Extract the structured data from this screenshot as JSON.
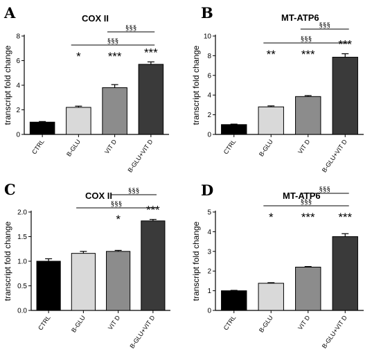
{
  "chart_data": [
    {
      "panel": "A",
      "type": "bar",
      "title": "COX II",
      "ylabel": "transcript fold change",
      "categories": [
        "CTRL",
        "B-GLU",
        "VIT D",
        "B-GLU+VIT D"
      ],
      "values": [
        1.0,
        2.2,
        3.8,
        5.7
      ],
      "errors": [
        0.05,
        0.1,
        0.25,
        0.2
      ],
      "ylim": [
        0,
        8
      ],
      "yticks": [
        "0",
        "2",
        "4",
        "6",
        "8"
      ],
      "colors": [
        "#000000",
        "#d9d9d9",
        "#8c8c8c",
        "#3a3a3a"
      ],
      "significance": [
        "",
        "*",
        "***",
        "***"
      ],
      "brackets": [
        {
          "from": 1,
          "to": 3,
          "label": "§§§"
        },
        {
          "from": 2,
          "to": 3,
          "label": "§§§"
        }
      ]
    },
    {
      "panel": "B",
      "type": "bar",
      "title": "MT-ATP6",
      "ylabel": "transcript fold change",
      "categories": [
        "CTRL",
        "B-GLU",
        "VIT D",
        "B-GLU+VIT D"
      ],
      "values": [
        1.0,
        2.8,
        3.85,
        7.85
      ],
      "errors": [
        0.05,
        0.1,
        0.1,
        0.35
      ],
      "ylim": [
        0,
        10
      ],
      "yticks": [
        "0",
        "2",
        "4",
        "6",
        "8",
        "10"
      ],
      "colors": [
        "#000000",
        "#d9d9d9",
        "#8c8c8c",
        "#3a3a3a"
      ],
      "significance": [
        "",
        "**",
        "***",
        "***"
      ],
      "brackets": [
        {
          "from": 1,
          "to": 3,
          "label": "§§§"
        },
        {
          "from": 2,
          "to": 3,
          "label": "§§§"
        }
      ]
    },
    {
      "panel": "C",
      "type": "bar",
      "title": "COX II",
      "ylabel": "transcript fold change",
      "categories": [
        "CTRL",
        "B-GLU",
        "VIT D",
        "B-GLU+VIT D"
      ],
      "values": [
        1.0,
        1.16,
        1.2,
        1.82
      ],
      "errors": [
        0.05,
        0.04,
        0.02,
        0.03
      ],
      "ylim": [
        0,
        2.0
      ],
      "yticks": [
        "0.0",
        "0.5",
        "1.0",
        "1.5",
        "2.0"
      ],
      "colors": [
        "#000000",
        "#d9d9d9",
        "#8c8c8c",
        "#3a3a3a"
      ],
      "significance": [
        "",
        "",
        "*",
        "***"
      ],
      "brackets": [
        {
          "from": 1,
          "to": 3,
          "label": "§§§"
        },
        {
          "from": 2,
          "to": 3,
          "label": "§§§"
        }
      ]
    },
    {
      "panel": "D",
      "type": "bar",
      "title": "MT-ATP6",
      "ylabel": "transcript fold change",
      "categories": [
        "CTRL",
        "B-GLU",
        "VIT D",
        "B-GLU+VIT D"
      ],
      "values": [
        1.0,
        1.38,
        2.2,
        3.75
      ],
      "errors": [
        0.02,
        0.03,
        0.03,
        0.15
      ],
      "ylim": [
        0,
        5
      ],
      "yticks": [
        "0",
        "1",
        "2",
        "3",
        "4",
        "5"
      ],
      "colors": [
        "#000000",
        "#d9d9d9",
        "#8c8c8c",
        "#3a3a3a"
      ],
      "significance": [
        "",
        "*",
        "***",
        "***"
      ],
      "brackets": [
        {
          "from": 1,
          "to": 3,
          "label": "§§§"
        },
        {
          "from": 2,
          "to": 3,
          "label": "§§§"
        }
      ]
    }
  ]
}
